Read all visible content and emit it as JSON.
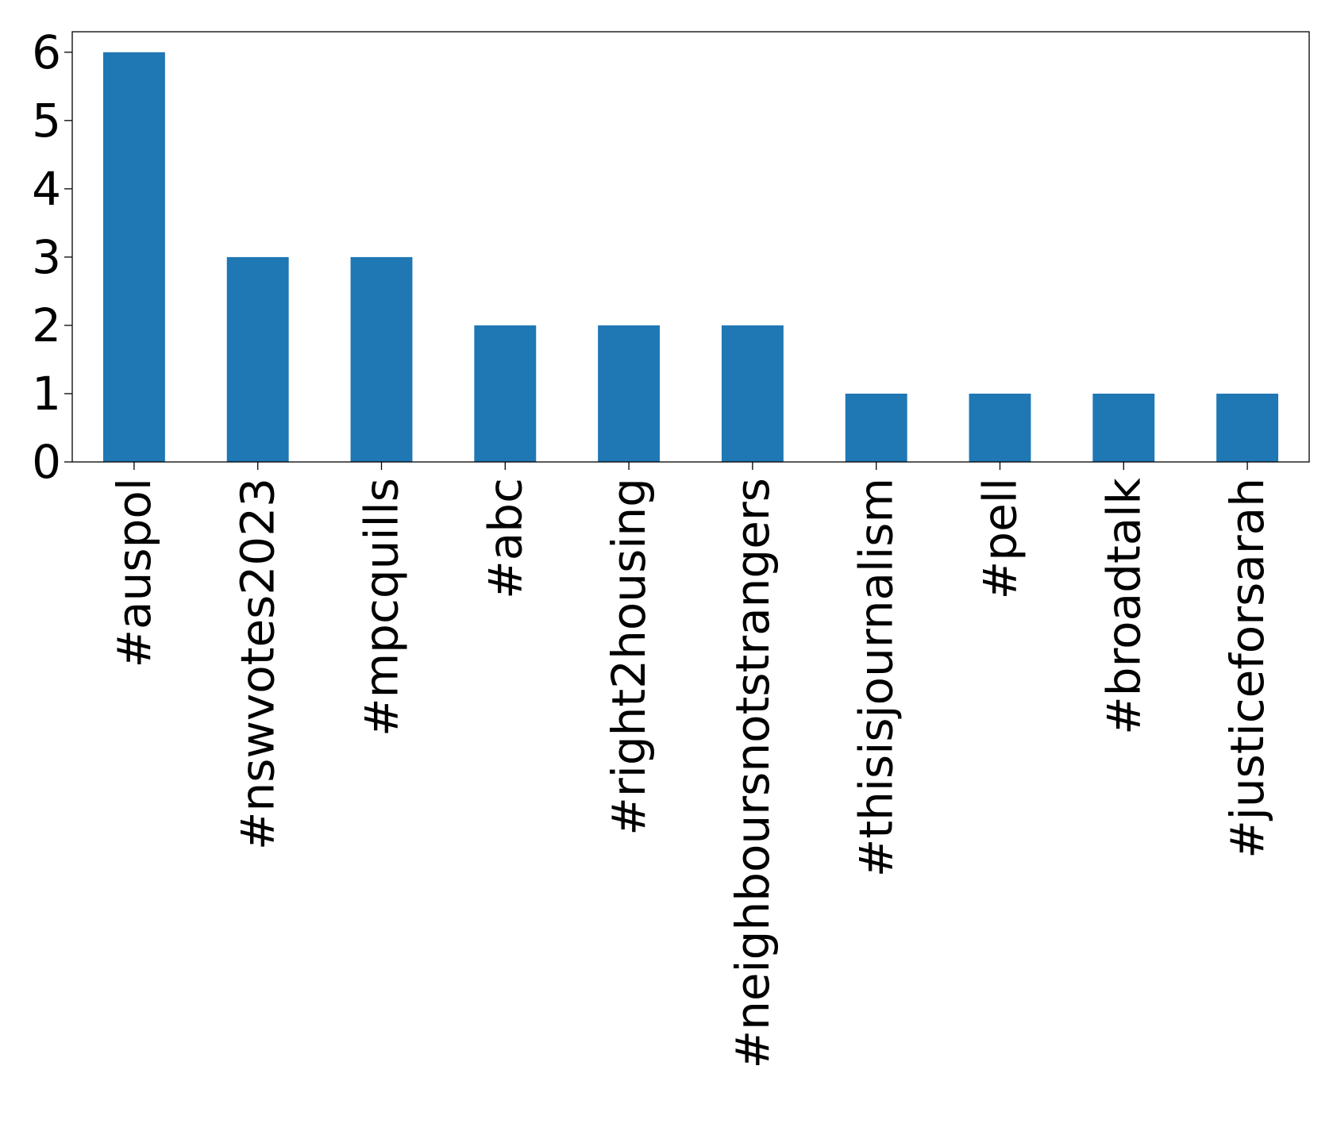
{
  "chart_data": {
    "type": "bar",
    "title": "",
    "xlabel": "",
    "ylabel": "",
    "categories": [
      "#auspol",
      "#nswvotes2023",
      "#mpcquills",
      "#abc",
      "#right2housing",
      "#neighboursnotstrangers",
      "#thisisjournalism",
      "#pell",
      "#broadtalk",
      "#justiceforsarah"
    ],
    "values": [
      6,
      3,
      3,
      2,
      2,
      2,
      1,
      1,
      1,
      1
    ],
    "ylim": [
      0,
      6.3
    ],
    "yticks": [
      0,
      1,
      2,
      3,
      4,
      5,
      6
    ],
    "bar_color": "#1f77b4",
    "grid": false,
    "legend": "none"
  }
}
